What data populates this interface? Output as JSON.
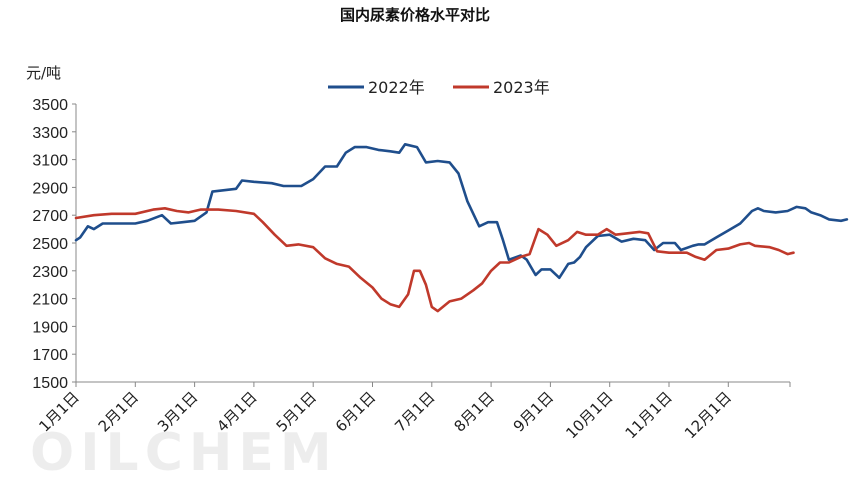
{
  "chart_data": {
    "type": "line",
    "title": "国内尿素价格水平对比",
    "ylabel": "元/吨",
    "ylim": [
      1500,
      3500
    ],
    "yticks": [
      1500,
      1700,
      1900,
      2100,
      2300,
      2500,
      2700,
      2900,
      3100,
      3300,
      3500
    ],
    "categories": [
      "1月1日",
      "2月1日",
      "3月1日",
      "4月1日",
      "5月1日",
      "6月1日",
      "7月1日",
      "8月1日",
      "9月1日",
      "10月1日",
      "11月1日",
      "12月1日"
    ],
    "legend_position": "top",
    "grid": false,
    "series": [
      {
        "name": "2022年",
        "color": "#1f4e8c",
        "points": [
          [
            0,
            2520
          ],
          [
            0.07,
            2540
          ],
          [
            0.2,
            2620
          ],
          [
            0.3,
            2600
          ],
          [
            0.45,
            2640
          ],
          [
            0.7,
            2640
          ],
          [
            1.0,
            2640
          ],
          [
            1.2,
            2660
          ],
          [
            1.45,
            2700
          ],
          [
            1.6,
            2640
          ],
          [
            1.8,
            2650
          ],
          [
            2.0,
            2660
          ],
          [
            2.2,
            2720
          ],
          [
            2.3,
            2870
          ],
          [
            2.5,
            2880
          ],
          [
            2.7,
            2890
          ],
          [
            2.8,
            2950
          ],
          [
            3.0,
            2940
          ],
          [
            3.3,
            2930
          ],
          [
            3.5,
            2910
          ],
          [
            3.8,
            2910
          ],
          [
            4.0,
            2960
          ],
          [
            4.2,
            3050
          ],
          [
            4.4,
            3050
          ],
          [
            4.55,
            3150
          ],
          [
            4.7,
            3190
          ],
          [
            4.9,
            3190
          ],
          [
            5.1,
            3170
          ],
          [
            5.3,
            3160
          ],
          [
            5.45,
            3150
          ],
          [
            5.55,
            3210
          ],
          [
            5.75,
            3190
          ],
          [
            5.9,
            3080
          ],
          [
            6.1,
            3090
          ],
          [
            6.3,
            3080
          ],
          [
            6.45,
            3000
          ],
          [
            6.6,
            2800
          ],
          [
            6.8,
            2620
          ],
          [
            6.95,
            2650
          ],
          [
            7.1,
            2650
          ],
          [
            7.2,
            2520
          ],
          [
            7.3,
            2380
          ],
          [
            7.5,
            2410
          ],
          [
            7.6,
            2380
          ],
          [
            7.75,
            2270
          ],
          [
            7.85,
            2310
          ],
          [
            8.0,
            2310
          ],
          [
            8.15,
            2250
          ],
          [
            8.3,
            2350
          ],
          [
            8.4,
            2360
          ],
          [
            8.5,
            2400
          ],
          [
            8.6,
            2470
          ],
          [
            8.8,
            2550
          ],
          [
            9.0,
            2560
          ],
          [
            9.2,
            2510
          ],
          [
            9.4,
            2530
          ],
          [
            9.6,
            2520
          ],
          [
            9.75,
            2450
          ],
          [
            9.9,
            2500
          ],
          [
            10.1,
            2500
          ],
          [
            10.2,
            2450
          ],
          [
            10.4,
            2480
          ],
          [
            10.5,
            2490
          ],
          [
            10.6,
            2490
          ],
          [
            10.8,
            2540
          ],
          [
            11.0,
            2590
          ],
          [
            11.2,
            2640
          ],
          [
            11.4,
            2730
          ],
          [
            11.5,
            2750
          ],
          [
            11.6,
            2730
          ],
          [
            11.8,
            2720
          ],
          [
            12.0,
            2730
          ],
          [
            12.15,
            2760
          ],
          [
            12.3,
            2750
          ],
          [
            12.4,
            2720
          ],
          [
            12.55,
            2700
          ],
          [
            12.7,
            2670
          ],
          [
            12.9,
            2660
          ],
          [
            13.0,
            2670
          ]
        ]
      },
      {
        "name": "2023年",
        "color": "#c0392b",
        "points": [
          [
            0,
            2680
          ],
          [
            0.3,
            2700
          ],
          [
            0.6,
            2710
          ],
          [
            1.0,
            2710
          ],
          [
            1.3,
            2740
          ],
          [
            1.5,
            2750
          ],
          [
            1.7,
            2730
          ],
          [
            1.9,
            2720
          ],
          [
            2.1,
            2740
          ],
          [
            2.4,
            2740
          ],
          [
            2.7,
            2730
          ],
          [
            3.0,
            2710
          ],
          [
            3.15,
            2650
          ],
          [
            3.35,
            2560
          ],
          [
            3.55,
            2480
          ],
          [
            3.75,
            2490
          ],
          [
            4.0,
            2470
          ],
          [
            4.2,
            2390
          ],
          [
            4.4,
            2350
          ],
          [
            4.6,
            2330
          ],
          [
            4.8,
            2250
          ],
          [
            5.0,
            2180
          ],
          [
            5.15,
            2100
          ],
          [
            5.3,
            2060
          ],
          [
            5.45,
            2040
          ],
          [
            5.6,
            2130
          ],
          [
            5.7,
            2300
          ],
          [
            5.8,
            2300
          ],
          [
            5.9,
            2200
          ],
          [
            6.0,
            2040
          ],
          [
            6.1,
            2010
          ],
          [
            6.3,
            2080
          ],
          [
            6.5,
            2100
          ],
          [
            6.7,
            2160
          ],
          [
            6.85,
            2210
          ],
          [
            7.0,
            2300
          ],
          [
            7.15,
            2360
          ],
          [
            7.3,
            2360
          ],
          [
            7.5,
            2400
          ],
          [
            7.65,
            2420
          ],
          [
            7.8,
            2600
          ],
          [
            7.95,
            2560
          ],
          [
            8.1,
            2480
          ],
          [
            8.3,
            2520
          ],
          [
            8.45,
            2580
          ],
          [
            8.6,
            2560
          ],
          [
            8.8,
            2560
          ],
          [
            8.95,
            2600
          ],
          [
            9.1,
            2560
          ],
          [
            9.3,
            2570
          ],
          [
            9.5,
            2580
          ],
          [
            9.65,
            2570
          ],
          [
            9.8,
            2440
          ],
          [
            10.0,
            2430
          ],
          [
            10.3,
            2430
          ],
          [
            10.45,
            2400
          ],
          [
            10.6,
            2380
          ],
          [
            10.8,
            2450
          ],
          [
            11.0,
            2460
          ],
          [
            11.2,
            2490
          ],
          [
            11.35,
            2500
          ],
          [
            11.45,
            2480
          ],
          [
            11.7,
            2470
          ],
          [
            11.85,
            2450
          ],
          [
            12.0,
            2420
          ],
          [
            12.1,
            2430
          ]
        ]
      }
    ],
    "watermark": "OILCHEM"
  }
}
